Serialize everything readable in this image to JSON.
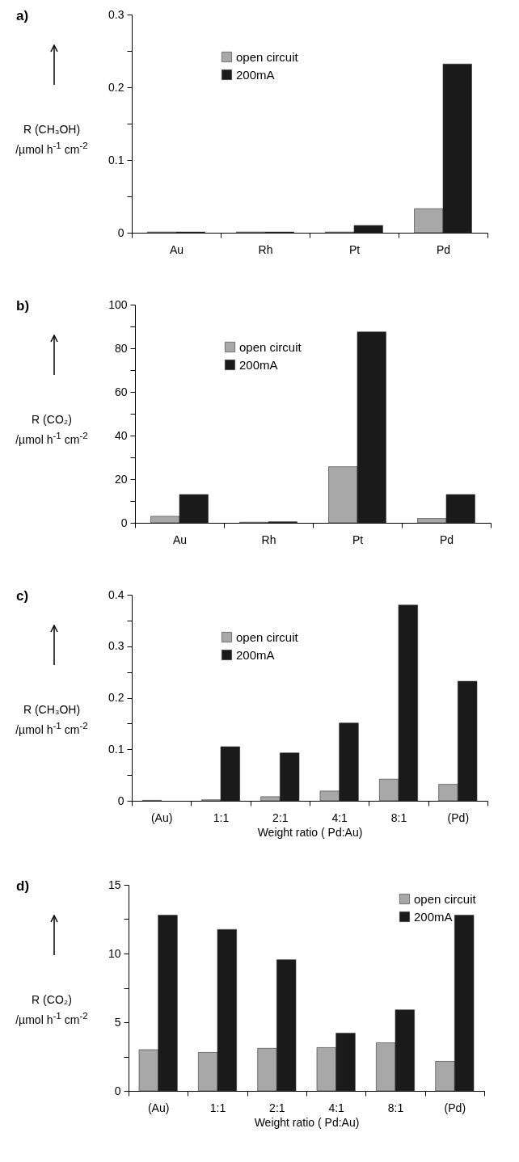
{
  "chart_data": [
    {
      "type": "bar",
      "title": "a)",
      "ylabel": "R (CH₃OH)\n/µmol h$^{-1}$ cm$^{-2}$",
      "categories": [
        "Au",
        "Rh",
        "Pt",
        "Pd"
      ],
      "series": [
        {
          "name": "open circuit",
          "color": "#a8a8a8",
          "values": [
            0.001,
            0.001,
            0.001,
            0.033
          ]
        },
        {
          "name": "200mA",
          "color": "#1a1a1a",
          "values": [
            0.001,
            0.001,
            0.01,
            0.232
          ]
        }
      ],
      "ylim": [
        0,
        0.3
      ],
      "yticks": [
        0,
        {
          "value": 0.05,
          "label": null
        },
        0.1,
        {
          "value": 0.15,
          "label": null
        },
        0.2,
        {
          "value": 0.25,
          "label": null
        },
        0.3
      ],
      "legend": "top left"
    },
    {
      "type": "bar",
      "title": "b)",
      "ylabel": "R (CO₂)\n/µmol h$^{-1}$ cm$^{-2}$",
      "categories": [
        "Au",
        "Rh",
        "Pt",
        "Pd"
      ],
      "series": [
        {
          "name": "open circuit",
          "color": "#a8a8a8",
          "values": [
            3,
            0.3,
            25.7,
            2
          ]
        },
        {
          "name": "200mA",
          "color": "#1a1a1a",
          "values": [
            13,
            0.5,
            87.5,
            13
          ]
        }
      ],
      "ylim": [
        0,
        100
      ],
      "yticks": [
        0,
        {
          "value": 10,
          "label": null
        },
        20,
        {
          "value": 30,
          "label": null
        },
        40,
        {
          "value": 50,
          "label": null
        },
        60,
        {
          "value": 70,
          "label": null
        },
        80,
        {
          "value": 90,
          "label": null
        },
        100
      ],
      "legend": "top left"
    },
    {
      "type": "bar",
      "title": "c)",
      "ylabel": "R (CH₃OH)\n/µmol h$^{-1}$ cm$^{-2}$",
      "xlabel": "Weight ratio ( Pd:Au)",
      "categories": [
        "(Au)",
        "1:1",
        "2:1",
        "4:1",
        "8:1",
        "(Pd)"
      ],
      "series": [
        {
          "name": "open circuit",
          "color": "#a8a8a8",
          "values": [
            0.001,
            0.002,
            0.008,
            0.019,
            0.042,
            0.032
          ]
        },
        {
          "name": "200mA",
          "color": "#1a1a1a",
          "values": [
            null,
            0.105,
            0.093,
            0.151,
            0.38,
            0.232
          ]
        }
      ],
      "ylim": [
        0,
        0.4
      ],
      "yticks": [
        0,
        {
          "value": 0.05,
          "label": null
        },
        0.1,
        {
          "value": 0.15,
          "label": null
        },
        0.2,
        {
          "value": 0.25,
          "label": null
        },
        0.3,
        {
          "value": 0.35,
          "label": null
        },
        0.4
      ],
      "legend": "top left"
    },
    {
      "type": "bar",
      "title": "d)",
      "ylabel": "R (CO₂)\n/µmol h$^{-1}$ cm$^{-2}$",
      "xlabel": "Weight ratio ( Pd:Au)",
      "categories": [
        "(Au)",
        "1:1",
        "2:1",
        "4:1",
        "8:1",
        "(Pd)"
      ],
      "series": [
        {
          "name": "open circuit",
          "color": "#a8a8a8",
          "values": [
            3.0,
            2.8,
            3.1,
            3.15,
            3.5,
            2.15
          ]
        },
        {
          "name": "200mA",
          "color": "#1a1a1a",
          "values": [
            12.8,
            11.75,
            9.55,
            4.2,
            5.9,
            12.8
          ]
        }
      ],
      "ylim": [
        0,
        15
      ],
      "yticks": [
        0,
        {
          "value": 2.5,
          "label": null
        },
        5,
        {
          "value": 7.5,
          "label": null
        },
        10,
        {
          "value": 12.5,
          "label": null
        },
        15
      ],
      "legend": "top right"
    }
  ]
}
